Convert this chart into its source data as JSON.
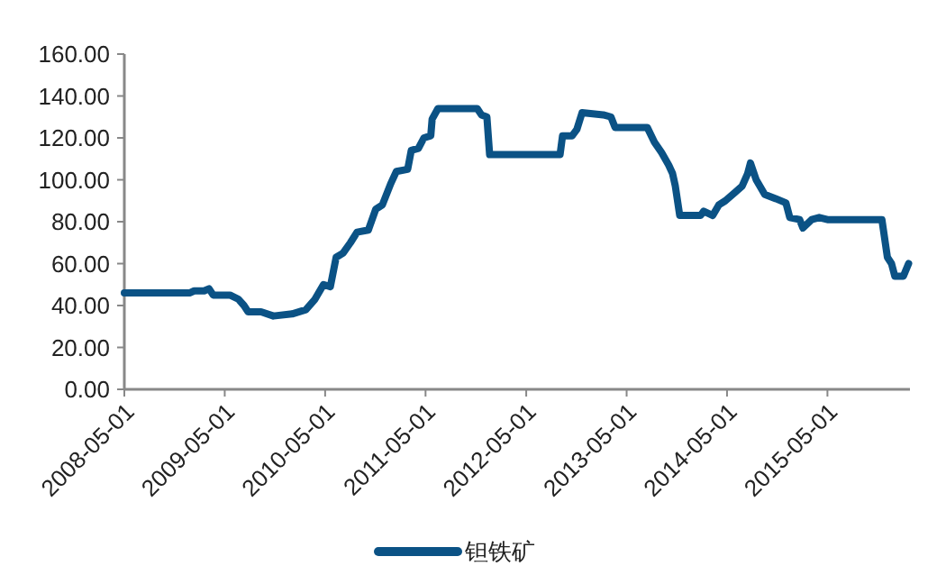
{
  "chart_data": {
    "type": "line",
    "legend": "bottom",
    "marker": "none",
    "line_style": "solid",
    "grid": false,
    "xlim": [
      "2008-05-01",
      "2016-02-25"
    ],
    "xticks": [
      "2008-05-01",
      "2009-05-01",
      "2010-05-01",
      "2011-05-01",
      "2012-05-01",
      "2013-05-01",
      "2014-05-01",
      "2015-05-01"
    ],
    "ylim": [
      0,
      160
    ],
    "yticks": [
      {
        "value": 0,
        "label": "0.00"
      },
      {
        "value": 20,
        "label": "20.00"
      },
      {
        "value": 40,
        "label": "40.00"
      },
      {
        "value": 60,
        "label": "60.00"
      },
      {
        "value": 80,
        "label": "80.00"
      },
      {
        "value": 100,
        "label": "100.00"
      },
      {
        "value": 120,
        "label": "120.00"
      },
      {
        "value": 140,
        "label": "140.00"
      },
      {
        "value": 160,
        "label": "160.00"
      }
    ],
    "x": [
      "2008-05-01",
      "2008-12-24",
      "2009-01-10",
      "2009-02-15",
      "2009-03-05",
      "2009-03-20",
      "2009-05-20",
      "2009-06-20",
      "2009-07-10",
      "2009-07-25",
      "2009-09-10",
      "2009-10-25",
      "2010-01-01",
      "2010-02-20",
      "2010-03-25",
      "2010-04-25",
      "2010-05-20",
      "2010-06-10",
      "2010-07-05",
      "2010-08-01",
      "2010-08-25",
      "2010-10-05",
      "2010-11-01",
      "2010-11-25",
      "2010-12-25",
      "2011-01-15",
      "2011-02-25",
      "2011-03-10",
      "2011-04-05",
      "2011-04-25",
      "2011-05-20",
      "2011-05-25",
      "2011-06-15",
      "2011-11-05",
      "2011-11-20",
      "2011-12-10",
      "2011-12-20",
      "2012-09-01",
      "2012-09-10",
      "2012-10-15",
      "2012-11-01",
      "2012-11-20",
      "2013-02-05",
      "2013-03-05",
      "2013-03-20",
      "2013-07-15",
      "2013-08-10",
      "2013-09-05",
      "2013-10-01",
      "2013-10-15",
      "2013-10-25",
      "2013-11-10",
      "2014-01-25",
      "2014-02-05",
      "2014-03-10",
      "2014-04-01",
      "2014-04-25",
      "2014-05-30",
      "2014-06-25",
      "2014-07-15",
      "2014-07-25",
      "2014-08-15",
      "2014-09-15",
      "2014-10-25",
      "2014-12-01",
      "2014-12-15",
      "2015-01-20",
      "2015-02-01",
      "2015-03-05",
      "2015-04-01",
      "2015-05-01",
      "2015-11-15",
      "2015-12-05",
      "2015-12-20",
      "2016-01-01",
      "2016-02-01",
      "2016-02-20"
    ],
    "series": [
      {
        "name": "钽铁矿",
        "color": "#0b5285",
        "values": [
          46,
          46,
          47,
          47,
          48,
          45,
          45,
          43,
          40,
          37,
          37,
          35,
          36,
          38,
          43,
          50,
          49,
          63,
          65,
          70,
          75,
          76,
          86,
          88,
          98,
          104,
          105,
          114,
          115,
          120,
          121,
          129,
          134,
          134,
          131,
          130,
          112,
          112,
          121,
          121,
          124,
          132,
          131,
          130,
          125,
          125,
          118,
          113,
          107,
          103,
          97,
          83,
          83,
          85,
          83,
          88,
          90,
          94,
          97,
          103,
          108,
          100,
          93,
          91,
          89,
          82,
          81,
          77,
          81,
          82,
          81,
          81,
          63,
          60,
          54,
          54,
          60
        ]
      }
    ]
  }
}
